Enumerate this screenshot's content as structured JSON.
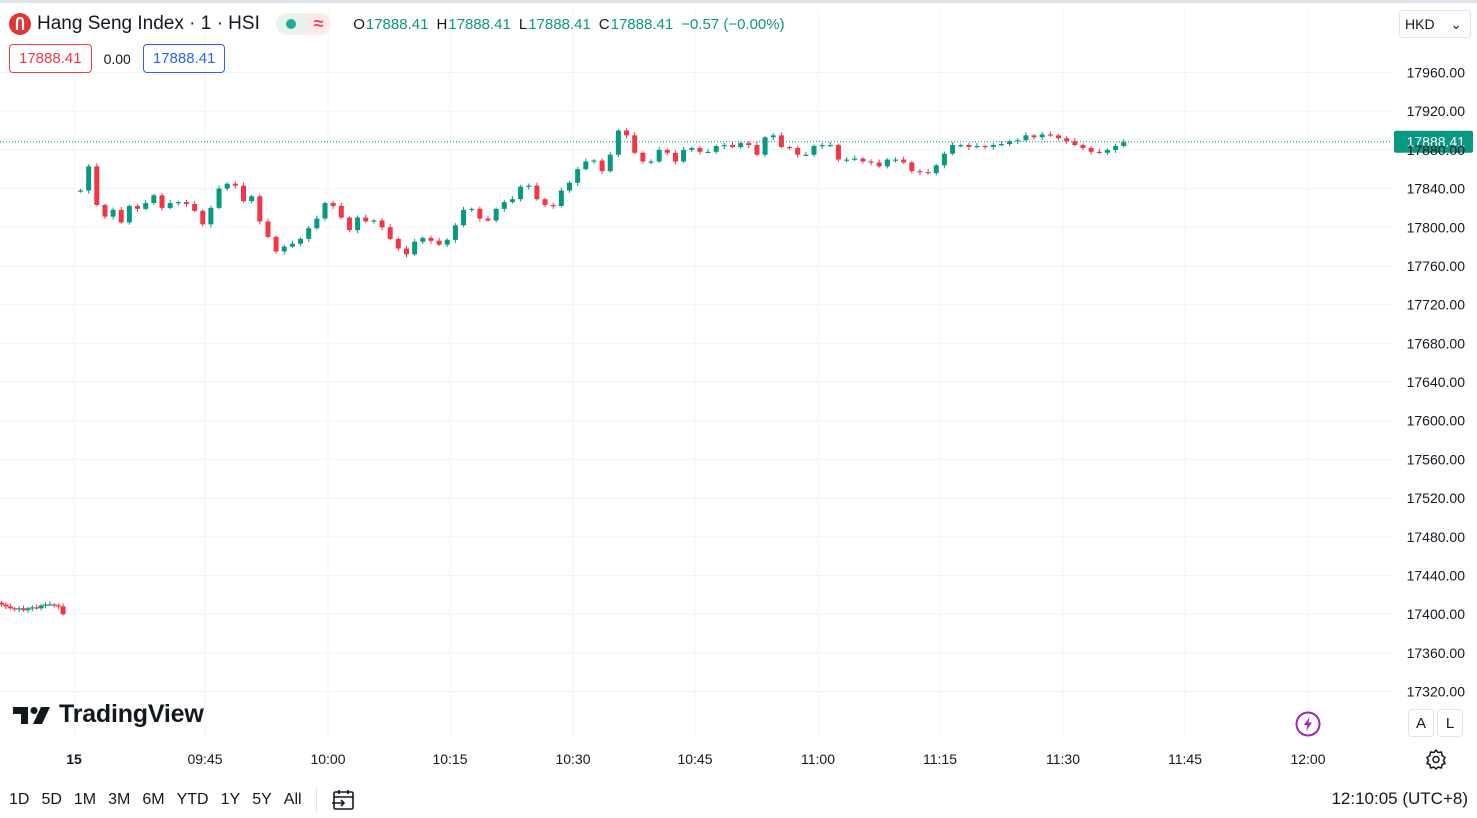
{
  "header": {
    "symbol_title": "Hang Seng Index · 1 · HSI",
    "status_icon": "market-open-dot-icon",
    "wave_glyph": "≈",
    "ohlc": {
      "o_key": "O",
      "o_val": "17888.41",
      "h_key": "H",
      "h_val": "17888.41",
      "l_key": "L",
      "l_val": "17888.41",
      "c_key": "C",
      "c_val": "17888.41",
      "change": "−0.57 (−0.00%)"
    }
  },
  "trade": {
    "sell_price": "17888.41",
    "spread": "0.00",
    "buy_price": "17888.41"
  },
  "currency": {
    "label": "HKD",
    "chevron": "⌄"
  },
  "brand": {
    "name": "TradingView"
  },
  "axis_buttons": {
    "auto": "A",
    "log": "L"
  },
  "timeframes": [
    "1D",
    "5D",
    "1M",
    "3M",
    "6M",
    "YTD",
    "1Y",
    "5Y",
    "All"
  ],
  "clock": "12:10:05 (UTC+8)",
  "colors": {
    "up": "#089981",
    "down": "#f23645",
    "grid": "#f0f3fa",
    "last_price_bg": "#089981",
    "sell": "#f23645",
    "buy": "#2962ff"
  },
  "chart_data": {
    "type": "candlestick",
    "title": "Hang Seng Index · 1 · HSI",
    "y_range": [
      17300,
      17990
    ],
    "y_ticks": [
      "17960.00",
      "17920.00",
      "17880.00",
      "17840.00",
      "17800.00",
      "17760.00",
      "17720.00",
      "17680.00",
      "17640.00",
      "17600.00",
      "17560.00",
      "17520.00",
      "17480.00",
      "17440.00",
      "17400.00",
      "17360.00",
      "17320.00"
    ],
    "x_ticks": [
      {
        "label": "15",
        "bold": true
      },
      {
        "label": "09:45"
      },
      {
        "label": "10:00"
      },
      {
        "label": "10:15"
      },
      {
        "label": "10:30"
      },
      {
        "label": "10:45"
      },
      {
        "label": "11:00"
      },
      {
        "label": "11:15"
      },
      {
        "label": "11:30"
      },
      {
        "label": "11:45"
      },
      {
        "label": "12:00"
      }
    ],
    "last_price": "17888.41",
    "prev_session_closes": [
      17410,
      17408,
      17406,
      17405,
      17406,
      17404,
      17406,
      17407,
      17406,
      17409,
      17410,
      17410,
      17409,
      17408,
      17400
    ],
    "closes": [
      17838,
      17863,
      17823,
      17811,
      17818,
      17805,
      17822,
      17819,
      17825,
      17833,
      17820,
      17825,
      17826,
      17824,
      17817,
      17803,
      17820,
      17840,
      17845,
      17843,
      17827,
      17832,
      17806,
      17790,
      17775,
      17780,
      17783,
      17788,
      17799,
      17809,
      17825,
      17822,
      17810,
      17797,
      17810,
      17806,
      17807,
      17800,
      17788,
      17778,
      17772,
      17785,
      17789,
      17786,
      17782,
      17787,
      17802,
      17818,
      17819,
      17809,
      17807,
      17819,
      17826,
      17829,
      17842,
      17843,
      17829,
      17823,
      17822,
      17838,
      17846,
      17860,
      17868,
      17869,
      17858,
      17875,
      17900,
      17895,
      17877,
      17868,
      17868,
      17880,
      17877,
      17868,
      17880,
      17882,
      17878,
      17878,
      17884,
      17885,
      17883,
      17887,
      17885,
      17875,
      17893,
      17895,
      17883,
      17882,
      17875,
      17875,
      17884,
      17885,
      17885,
      17870,
      17870,
      17871,
      17868,
      17867,
      17863,
      17870,
      17870,
      17867,
      17858,
      17857,
      17856,
      17864,
      17876,
      17885,
      17885,
      17883,
      17884,
      17883,
      17885,
      17886,
      17889,
      17890,
      17895,
      17893,
      17896,
      17895,
      17892,
      17889,
      17885,
      17882,
      17878,
      17877,
      17880,
      17884,
      17888
    ]
  }
}
